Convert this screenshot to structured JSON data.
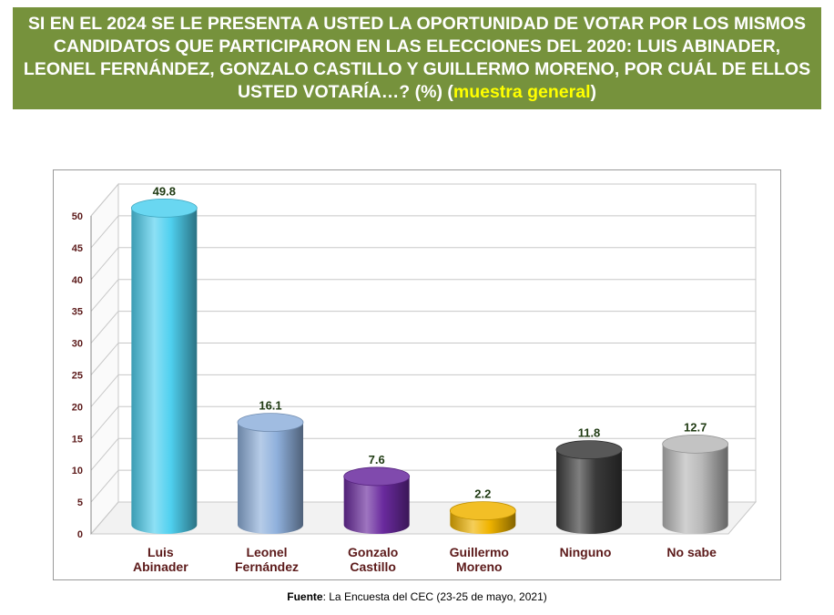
{
  "header": {
    "title_main": "SI EN EL 2024 SE LE PRESENTA A USTED LA OPORTUNIDAD DE VOTAR POR LOS MISMOS CANDIDATOS QUE PARTICIPARON EN LAS ELECCIONES DEL 2020: LUIS ABINADER, LEONEL FERNÁNDEZ, GONZALO CASTILLO Y GUILLERMO MORENO, POR CUÁL DE ELLOS USTED VOTARÍA…? (%) (",
    "title_highlight": "muestra general",
    "title_close": ")",
    "background_color": "#76923c",
    "highlight_color": "#ffff00"
  },
  "chart_data": {
    "type": "bar",
    "categories": [
      [
        "Luis",
        "Abinader"
      ],
      [
        "Leonel",
        "Fernández"
      ],
      [
        "Gonzalo",
        "Castillo"
      ],
      [
        "Guillermo",
        "Moreno"
      ],
      [
        "Ninguno"
      ],
      [
        "No sabe"
      ]
    ],
    "values": [
      49.8,
      16.1,
      7.6,
      2.2,
      11.8,
      12.7
    ],
    "value_labels": [
      "49.8",
      "16.1",
      "7.6",
      "2.2",
      "11.8",
      "12.7"
    ],
    "colors": [
      "#4fd0ef",
      "#8fb0dc",
      "#6a2a9e",
      "#f0b400",
      "#3a3a3a",
      "#b8b8b8"
    ],
    "ylim": [
      0,
      50
    ],
    "yticks": [
      0,
      5,
      10,
      15,
      20,
      25,
      30,
      35,
      40,
      45,
      50
    ],
    "grid": true,
    "style": "3d-cylinder",
    "tick_label_color": "#5c1a1a",
    "value_label_color": "#1f3a12"
  },
  "footer": {
    "source_label": "Fuente",
    "source_text": ": La Encuesta del CEC (23-25 de mayo, 2021)"
  }
}
